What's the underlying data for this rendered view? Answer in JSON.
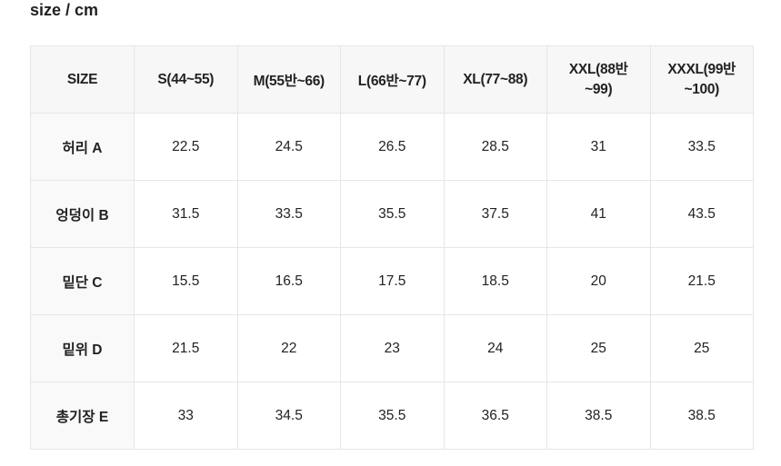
{
  "title": "size / cm",
  "table": {
    "header": [
      "SIZE",
      "S(44~55)",
      "M(55반~66)",
      "L(66반~77)",
      "XL(77~88)",
      "XXL(88반~99)",
      "XXXL(99반~100)"
    ],
    "rows": [
      [
        "허리 A",
        "22.5",
        "24.5",
        "26.5",
        "28.5",
        "31",
        "33.5"
      ],
      [
        "엉덩이 B",
        "31.5",
        "33.5",
        "35.5",
        "37.5",
        "41",
        "43.5"
      ],
      [
        "밑단 C",
        "15.5",
        "16.5",
        "17.5",
        "18.5",
        "20",
        "21.5"
      ],
      [
        "밑위 D",
        "21.5",
        "22",
        "23",
        "24",
        "25",
        "25"
      ],
      [
        "총기장 E",
        "33",
        "34.5",
        "35.5",
        "36.5",
        "38.5",
        "38.5"
      ]
    ]
  }
}
